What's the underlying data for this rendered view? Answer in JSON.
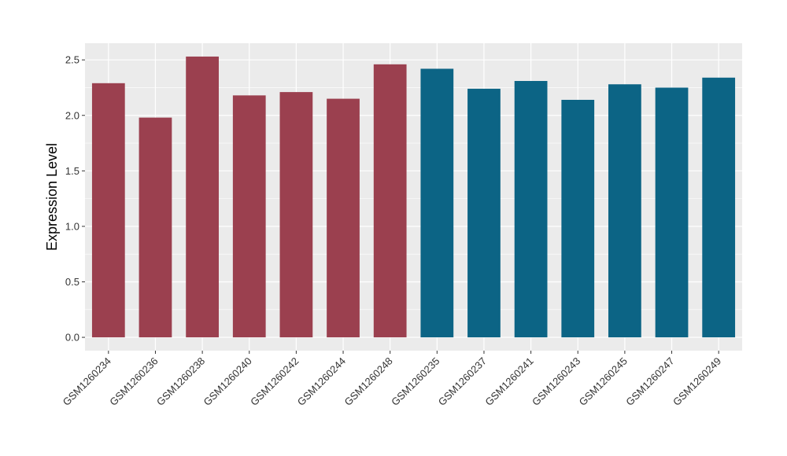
{
  "chart_data": {
    "type": "bar",
    "title": "",
    "xlabel": "",
    "ylabel": "Expression Level",
    "ylim": [
      -0.12,
      2.65
    ],
    "yticks": [
      "0.0",
      "0.5",
      "1.0",
      "1.5",
      "2.0",
      "2.5"
    ],
    "grid": true,
    "legend": "none",
    "categories": [
      "GSM1260234",
      "GSM1260236",
      "GSM1260238",
      "GSM1260240",
      "GSM1260242",
      "GSM1260244",
      "GSM1260248",
      "GSM1260235",
      "GSM1260237",
      "GSM1260241",
      "GSM1260243",
      "GSM1260245",
      "GSM1260247",
      "GSM1260249"
    ],
    "values": [
      2.29,
      1.98,
      2.53,
      2.18,
      2.21,
      2.15,
      2.46,
      2.42,
      2.24,
      2.31,
      2.14,
      2.28,
      2.25,
      2.34
    ],
    "group_index": [
      0,
      0,
      0,
      0,
      0,
      0,
      0,
      1,
      1,
      1,
      1,
      1,
      1,
      1
    ],
    "group_colors": [
      "#9b404f",
      "#0c6485"
    ],
    "panel_background": "#ebebeb",
    "grid_color": "#ffffff"
  }
}
